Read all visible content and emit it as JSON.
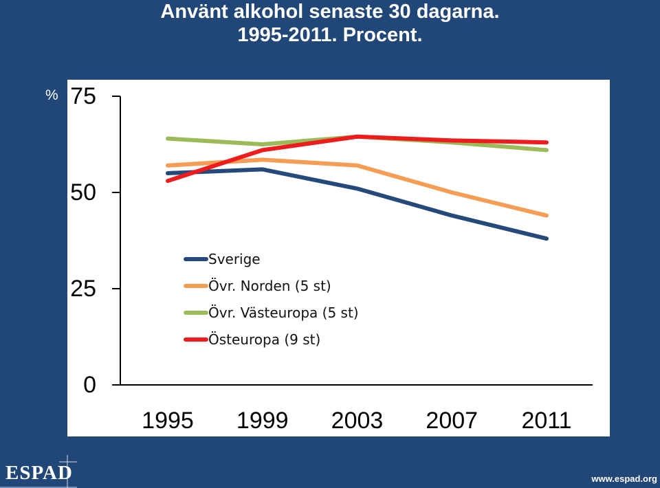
{
  "title_line1": "Använt alkohol senaste 30 dagarna.",
  "title_line2": "1995-2011. Procent.",
  "y_unit": "%",
  "logo_text": "ESPAD",
  "footer_url": "www.espad.org",
  "colors": {
    "background": "#214779",
    "plot_background": "#ffffff",
    "axis": "#000000"
  },
  "chart_data": {
    "type": "line",
    "title": "Använt alkohol senaste 30 dagarna. 1995-2011. Procent.",
    "ylabel": "%",
    "xlabel": "",
    "x": [
      1995,
      1999,
      2003,
      2007,
      2011
    ],
    "x_tick_labels": [
      "1995",
      "1999",
      "2003",
      "2007",
      "2011"
    ],
    "y_ticks": [
      0,
      25,
      50,
      75
    ],
    "y_tick_labels": [
      "0",
      "25",
      "50",
      "75"
    ],
    "ylim": [
      0,
      75
    ],
    "grid": false,
    "legend_position": "center-left",
    "series": [
      {
        "name": "Sverige",
        "color": "#24497a",
        "values": [
          55,
          56,
          51,
          44,
          38
        ]
      },
      {
        "name": "Övr. Norden (5 st)",
        "color": "#f59d54",
        "values": [
          57,
          58.5,
          57,
          50,
          44
        ]
      },
      {
        "name": "Övr. Västeuropa (5 st)",
        "color": "#9bbb59",
        "values": [
          64,
          62.5,
          64.5,
          63,
          61
        ]
      },
      {
        "name": "Östeuropa (9 st)",
        "color": "#ee1c1c",
        "values": [
          53,
          61,
          64.5,
          63.5,
          63
        ]
      }
    ]
  }
}
